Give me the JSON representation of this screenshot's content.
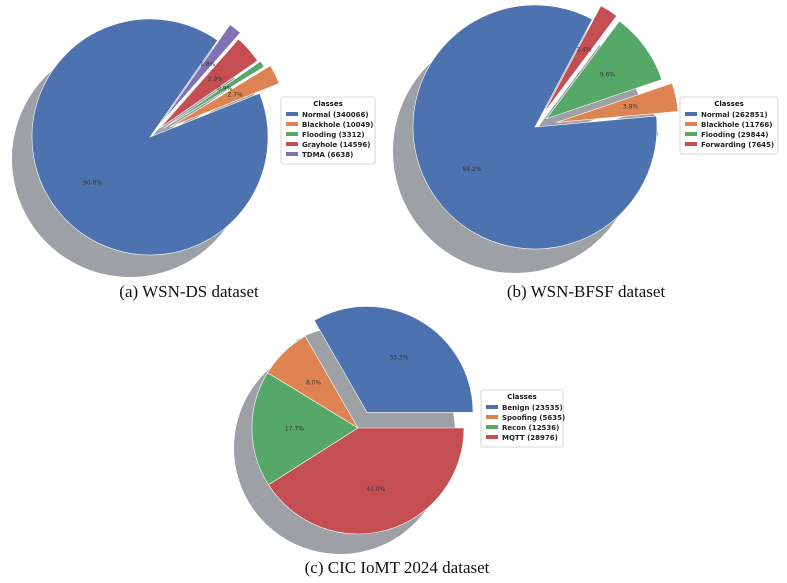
{
  "chart_data": [
    {
      "type": "pie",
      "caption": "(a) WSN-DS dataset",
      "legend_title": "Classes",
      "legend_position": "right",
      "series": [
        {
          "name": "Normal (340066)",
          "value": 340066,
          "label": "90.8%",
          "color": "#4c72b0"
        },
        {
          "name": "Blackhole (10049)",
          "value": 10049,
          "label": "2.7%",
          "color": "#dd8452"
        },
        {
          "name": "Flooding (3312)",
          "value": 3312,
          "label": "0.9%",
          "color": "#55a868"
        },
        {
          "name": "Grayhole (14596)",
          "value": 14596,
          "label": "3.9%",
          "color": "#c44e52"
        },
        {
          "name": "TDMA (6638)",
          "value": 6638,
          "label": "1.8%",
          "color": "#8172b3"
        }
      ]
    },
    {
      "type": "pie",
      "caption": "(b) WSN-BFSF dataset",
      "legend_title": "Classes",
      "legend_position": "right",
      "series": [
        {
          "name": "Normal (262851)",
          "value": 262851,
          "label": "84.2%",
          "color": "#4c72b0"
        },
        {
          "name": "Blackhole (11766)",
          "value": 11766,
          "label": "3.8%",
          "color": "#dd8452"
        },
        {
          "name": "Flooding (29844)",
          "value": 29844,
          "label": "9.6%",
          "color": "#55a868"
        },
        {
          "name": "Forwarding (7645)",
          "value": 7645,
          "label": "2.4%",
          "color": "#c44e52"
        }
      ]
    },
    {
      "type": "pie",
      "caption": "(c) CIC IoMT 2024 dataset",
      "legend_title": "Classes",
      "legend_position": "right",
      "series": [
        {
          "name": "Benign (23535)",
          "value": 23535,
          "label": "33.3%",
          "color": "#4c72b0"
        },
        {
          "name": "Spoofing (5635)",
          "value": 5635,
          "label": "8.0%",
          "color": "#dd8452"
        },
        {
          "name": "Recon (12536)",
          "value": 12536,
          "label": "17.7%",
          "color": "#55a868"
        },
        {
          "name": "MQTT (28976)",
          "value": 28976,
          "label": "41.0%",
          "color": "#c44e52"
        }
      ]
    }
  ]
}
